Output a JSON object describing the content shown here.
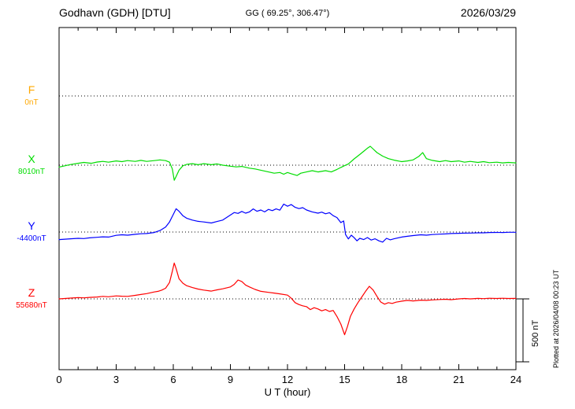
{
  "header": {
    "station": "Godhavn (GDH)  [DTU]",
    "geographic": "GG ( 69.25°, 306.47°)",
    "date": "2026/03/29"
  },
  "footer_note": "Plotted at 2026/04/08 00:23 UT",
  "scale_bar": {
    "label": "500 nT",
    "nT": 500
  },
  "x_axis": {
    "label": "U T (hour)",
    "min": 0,
    "max": 24,
    "major_ticks": [
      0,
      3,
      6,
      9,
      12,
      15,
      18,
      21,
      24
    ],
    "minor_step": 1
  },
  "chart_data": {
    "type": "line",
    "title": "Godhavn (GDH) [DTU] magnetogram 2026/03/29",
    "xlabel": "U T (hour)",
    "x_range": [
      0,
      24
    ],
    "y_units": "nT (offset from component baseline)",
    "grid": "dotted horizontal baseline per component",
    "legend_position": "left margin, colored component letters",
    "series": [
      {
        "id": "F",
        "label": "F",
        "baseline_label": "0nT",
        "baseline_nT": 0,
        "color": "#FFA800",
        "points": []
      },
      {
        "id": "X",
        "label": "X",
        "baseline_label": "8010nT",
        "baseline_nT": 8010,
        "color": "#00DD00",
        "points": [
          [
            0,
            -15
          ],
          [
            0.3,
            -5
          ],
          [
            0.6,
            5
          ],
          [
            1,
            15
          ],
          [
            1.3,
            22
          ],
          [
            1.7,
            15
          ],
          [
            2,
            25
          ],
          [
            2.3,
            30
          ],
          [
            2.6,
            24
          ],
          [
            3,
            34
          ],
          [
            3.3,
            28
          ],
          [
            3.6,
            36
          ],
          [
            4,
            30
          ],
          [
            4.3,
            38
          ],
          [
            4.6,
            30
          ],
          [
            5,
            36
          ],
          [
            5.3,
            42
          ],
          [
            5.6,
            36
          ],
          [
            5.8,
            24
          ],
          [
            5.95,
            -30
          ],
          [
            6.05,
            -120
          ],
          [
            6.15,
            -90
          ],
          [
            6.3,
            -40
          ],
          [
            6.5,
            -5
          ],
          [
            6.7,
            6
          ],
          [
            7,
            12
          ],
          [
            7.3,
            4
          ],
          [
            7.6,
            12
          ],
          [
            8,
            4
          ],
          [
            8.3,
            10
          ],
          [
            8.6,
            0
          ],
          [
            9,
            -8
          ],
          [
            9.3,
            -14
          ],
          [
            9.6,
            -10
          ],
          [
            10,
            -24
          ],
          [
            10.3,
            -30
          ],
          [
            10.6,
            -40
          ],
          [
            11,
            -54
          ],
          [
            11.3,
            -64
          ],
          [
            11.6,
            -58
          ],
          [
            11.8,
            -72
          ],
          [
            12,
            -58
          ],
          [
            12.2,
            -68
          ],
          [
            12.5,
            -82
          ],
          [
            12.7,
            -64
          ],
          [
            13,
            -54
          ],
          [
            13.3,
            -44
          ],
          [
            13.6,
            -54
          ],
          [
            14,
            -44
          ],
          [
            14.3,
            -54
          ],
          [
            14.6,
            -34
          ],
          [
            14.8,
            -18
          ],
          [
            15,
            -4
          ],
          [
            15.2,
            10
          ],
          [
            15.5,
            50
          ],
          [
            15.8,
            85
          ],
          [
            16,
            110
          ],
          [
            16.2,
            135
          ],
          [
            16.35,
            150
          ],
          [
            16.5,
            128
          ],
          [
            16.7,
            100
          ],
          [
            17,
            72
          ],
          [
            17.3,
            52
          ],
          [
            17.6,
            40
          ],
          [
            18,
            28
          ],
          [
            18.3,
            34
          ],
          [
            18.6,
            42
          ],
          [
            18.9,
            70
          ],
          [
            19.1,
            100
          ],
          [
            19.3,
            52
          ],
          [
            19.6,
            38
          ],
          [
            20,
            28
          ],
          [
            20.3,
            36
          ],
          [
            20.6,
            28
          ],
          [
            21,
            34
          ],
          [
            21.3,
            24
          ],
          [
            21.6,
            30
          ],
          [
            22,
            22
          ],
          [
            22.3,
            28
          ],
          [
            22.6,
            20
          ],
          [
            23,
            24
          ],
          [
            23.3,
            18
          ],
          [
            23.6,
            22
          ],
          [
            24,
            18
          ]
        ]
      },
      {
        "id": "Y",
        "label": "Y",
        "baseline_label": "-4400nT",
        "baseline_nT": -4400,
        "color": "#0000FF",
        "points": [
          [
            0,
            -60
          ],
          [
            0.3,
            -57
          ],
          [
            0.6,
            -54
          ],
          [
            1,
            -50
          ],
          [
            1.3,
            -52
          ],
          [
            1.6,
            -46
          ],
          [
            2,
            -42
          ],
          [
            2.3,
            -38
          ],
          [
            2.6,
            -40
          ],
          [
            3,
            -26
          ],
          [
            3.3,
            -22
          ],
          [
            3.6,
            -25
          ],
          [
            4,
            -18
          ],
          [
            4.3,
            -14
          ],
          [
            4.6,
            -12
          ],
          [
            5,
            -4
          ],
          [
            5.3,
            12
          ],
          [
            5.6,
            40
          ],
          [
            5.8,
            80
          ],
          [
            6,
            140
          ],
          [
            6.15,
            185
          ],
          [
            6.3,
            165
          ],
          [
            6.5,
            130
          ],
          [
            6.7,
            110
          ],
          [
            7,
            95
          ],
          [
            7.3,
            85
          ],
          [
            7.6,
            80
          ],
          [
            8,
            72
          ],
          [
            8.3,
            84
          ],
          [
            8.6,
            95
          ],
          [
            9,
            135
          ],
          [
            9.2,
            155
          ],
          [
            9.4,
            148
          ],
          [
            9.6,
            164
          ],
          [
            9.8,
            150
          ],
          [
            10,
            160
          ],
          [
            10.2,
            184
          ],
          [
            10.4,
            165
          ],
          [
            10.6,
            175
          ],
          [
            10.8,
            160
          ],
          [
            11,
            180
          ],
          [
            11.2,
            170
          ],
          [
            11.4,
            184
          ],
          [
            11.6,
            174
          ],
          [
            11.8,
            222
          ],
          [
            12,
            205
          ],
          [
            12.2,
            218
          ],
          [
            12.4,
            196
          ],
          [
            12.6,
            186
          ],
          [
            12.8,
            194
          ],
          [
            13,
            175
          ],
          [
            13.3,
            160
          ],
          [
            13.6,
            150
          ],
          [
            13.8,
            158
          ],
          [
            14,
            145
          ],
          [
            14.2,
            154
          ],
          [
            14.4,
            130
          ],
          [
            14.6,
            115
          ],
          [
            14.8,
            75
          ],
          [
            14.95,
            88
          ],
          [
            15.05,
            -20
          ],
          [
            15.2,
            -55
          ],
          [
            15.35,
            -25
          ],
          [
            15.5,
            -45
          ],
          [
            15.65,
            -70
          ],
          [
            15.8,
            -50
          ],
          [
            16,
            -60
          ],
          [
            16.2,
            -44
          ],
          [
            16.4,
            -64
          ],
          [
            16.6,
            -54
          ],
          [
            16.8,
            -70
          ],
          [
            17,
            -80
          ],
          [
            17.2,
            -50
          ],
          [
            17.4,
            -62
          ],
          [
            17.6,
            -54
          ],
          [
            18,
            -40
          ],
          [
            18.3,
            -34
          ],
          [
            18.6,
            -28
          ],
          [
            19,
            -22
          ],
          [
            19.3,
            -25
          ],
          [
            19.6,
            -20
          ],
          [
            20,
            -17
          ],
          [
            20.3,
            -15
          ],
          [
            20.6,
            -12
          ],
          [
            21,
            -10
          ],
          [
            21.3,
            -9
          ],
          [
            21.6,
            -8
          ],
          [
            22,
            -6
          ],
          [
            22.3,
            -6
          ],
          [
            22.6,
            -4
          ],
          [
            23,
            -3
          ],
          [
            23.3,
            -4
          ],
          [
            23.6,
            -2
          ],
          [
            24,
            -2
          ]
        ]
      },
      {
        "id": "Z",
        "label": "Z",
        "baseline_label": "55680nT",
        "baseline_nT": 55680,
        "color": "#FF0000",
        "points": [
          [
            0,
            0
          ],
          [
            0.3,
            3
          ],
          [
            0.6,
            6
          ],
          [
            1,
            10
          ],
          [
            1.3,
            8
          ],
          [
            1.6,
            12
          ],
          [
            2,
            15
          ],
          [
            2.3,
            20
          ],
          [
            2.6,
            17
          ],
          [
            3,
            24
          ],
          [
            3.3,
            21
          ],
          [
            3.6,
            20
          ],
          [
            4,
            28
          ],
          [
            4.3,
            35
          ],
          [
            4.6,
            42
          ],
          [
            5,
            55
          ],
          [
            5.2,
            60
          ],
          [
            5.4,
            70
          ],
          [
            5.6,
            85
          ],
          [
            5.8,
            130
          ],
          [
            5.95,
            220
          ],
          [
            6.05,
            285
          ],
          [
            6.15,
            240
          ],
          [
            6.3,
            160
          ],
          [
            6.5,
            125
          ],
          [
            6.7,
            105
          ],
          [
            7,
            90
          ],
          [
            7.3,
            78
          ],
          [
            7.6,
            70
          ],
          [
            8,
            62
          ],
          [
            8.3,
            72
          ],
          [
            8.6,
            80
          ],
          [
            9,
            95
          ],
          [
            9.2,
            115
          ],
          [
            9.4,
            150
          ],
          [
            9.6,
            138
          ],
          [
            9.8,
            110
          ],
          [
            10,
            95
          ],
          [
            10.3,
            75
          ],
          [
            10.6,
            60
          ],
          [
            11,
            52
          ],
          [
            11.3,
            46
          ],
          [
            11.6,
            40
          ],
          [
            12,
            30
          ],
          [
            12.2,
            5
          ],
          [
            12.4,
            -30
          ],
          [
            12.6,
            -45
          ],
          [
            12.8,
            -55
          ],
          [
            13,
            -62
          ],
          [
            13.2,
            -85
          ],
          [
            13.4,
            -70
          ],
          [
            13.6,
            -80
          ],
          [
            13.8,
            -95
          ],
          [
            14,
            -85
          ],
          [
            14.2,
            -100
          ],
          [
            14.4,
            -92
          ],
          [
            14.6,
            -140
          ],
          [
            14.8,
            -200
          ],
          [
            15,
            -285
          ],
          [
            15.15,
            -220
          ],
          [
            15.3,
            -140
          ],
          [
            15.5,
            -80
          ],
          [
            15.7,
            -30
          ],
          [
            15.9,
            15
          ],
          [
            16.1,
            60
          ],
          [
            16.3,
            100
          ],
          [
            16.5,
            70
          ],
          [
            16.7,
            20
          ],
          [
            16.9,
            -25
          ],
          [
            17.1,
            -42
          ],
          [
            17.3,
            -30
          ],
          [
            17.5,
            -36
          ],
          [
            17.7,
            -26
          ],
          [
            18,
            -18
          ],
          [
            18.3,
            -12
          ],
          [
            18.6,
            -16
          ],
          [
            19,
            -10
          ],
          [
            19.3,
            -12
          ],
          [
            19.6,
            -8
          ],
          [
            20,
            -5
          ],
          [
            20.3,
            -3
          ],
          [
            20.6,
            -6
          ],
          [
            21,
            0
          ],
          [
            21.3,
            3
          ],
          [
            21.6,
            0
          ],
          [
            22,
            4
          ],
          [
            22.3,
            2
          ],
          [
            22.6,
            5
          ],
          [
            23,
            3
          ],
          [
            23.3,
            5
          ],
          [
            23.6,
            3
          ],
          [
            24,
            4
          ]
        ]
      }
    ]
  }
}
